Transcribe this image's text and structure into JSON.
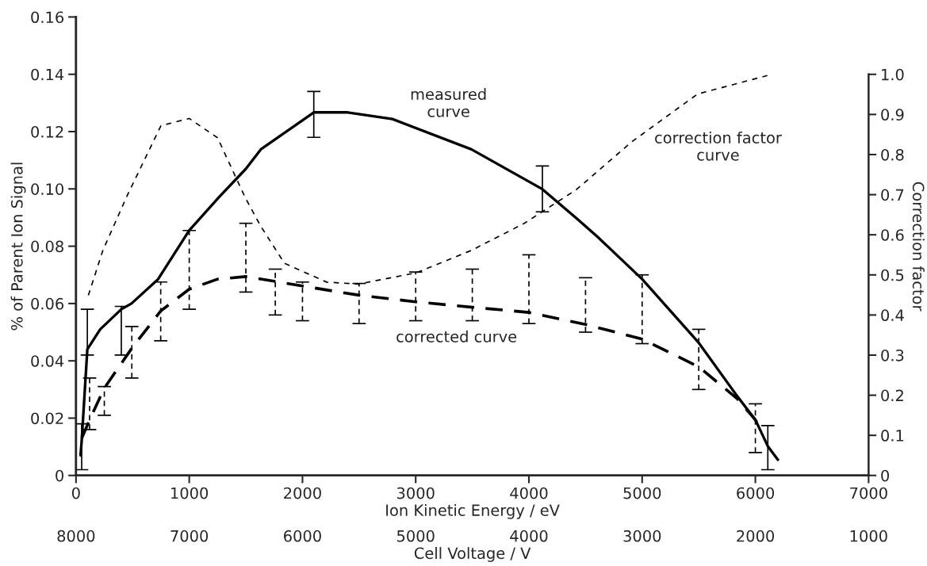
{
  "chart_data": {
    "type": "line",
    "xlabel": "Ion Kinetic Energy / eV",
    "ylabel": "% of Parent Ion Signal",
    "y2label": "Correction factor",
    "x2label": "Cell Voltage / V",
    "xlim": [
      0,
      7000
    ],
    "xticks": [
      0,
      1000,
      2000,
      3000,
      4000,
      5000,
      6000,
      7000
    ],
    "x2lim": [
      8000,
      1000
    ],
    "x2ticks": [
      8000,
      7000,
      6000,
      5000,
      4000,
      3000,
      2000,
      1000
    ],
    "ylim": [
      0,
      0.16
    ],
    "yticks": [
      0,
      0.02,
      0.04,
      0.06,
      0.08,
      {
        "value": 0.1,
        "label": "0.10"
      },
      0.12,
      0.14,
      0.16
    ],
    "y2lim": [
      0,
      1.143
    ],
    "y2ticks": [
      0,
      0.1,
      0.2,
      0.3,
      0.4,
      0.5,
      0.6,
      0.7,
      0.8,
      0.9,
      {
        "value": 1.0,
        "label": "1.0"
      }
    ],
    "grid": false,
    "legend": false,
    "marker": "none",
    "annotations": [
      "measured\ncurve",
      "corrected curve",
      "correction factor\ncurve"
    ],
    "series": [
      {
        "color": "#000000",
        "line_style": "solid",
        "x": [
          40,
          50,
          100,
          214,
          400,
          490,
          725,
          1000,
          1260,
          1500,
          1632,
          2100,
          2400,
          2794,
          3492,
          4119,
          4421,
          4608,
          5000,
          5500,
          5839,
          6000,
          6110,
          6199
        ],
        "values": [
          0.007,
          0.012,
          0.044,
          0.051,
          0.058,
          0.06,
          0.0685,
          0.0855,
          0.097,
          0.107,
          0.1138,
          0.1267,
          0.1267,
          0.1244,
          0.1138,
          0.0999,
          0.0897,
          0.0832,
          0.0685,
          0.0463,
          0.0277,
          0.0194,
          0.0102,
          0.0055
        ],
        "errors": [
          null,
          [
            0.002,
            0.018
          ],
          [
            0.042,
            0.058
          ],
          null,
          [
            0.042,
            0.059
          ],
          null,
          null,
          null,
          null,
          null,
          null,
          [
            0.118,
            0.134
          ],
          null,
          null,
          null,
          [
            0.092,
            0.108
          ],
          null,
          null,
          null,
          null,
          null,
          null,
          [
            0.002,
            0.0174
          ],
          null
        ]
      },
      {
        "color": "#000000",
        "line_style": "dashed",
        "x": [
          51,
          120,
          250,
          493,
          748,
          1000,
          1250,
          1500,
          1760,
          2000,
          2500,
          3000,
          3500,
          4000,
          4500,
          5000,
          5500,
          5839,
          6000,
          6020
        ],
        "values": [
          0.013,
          0.0194,
          0.0305,
          0.0444,
          0.0574,
          0.065,
          0.0685,
          0.0694,
          0.0677,
          0.0661,
          0.0629,
          0.0606,
          0.0587,
          0.0569,
          0.0527,
          0.0476,
          0.0379,
          0.0268,
          0.0194,
          0.018
        ],
        "errors": [
          null,
          [
            0.016,
            0.034
          ],
          [
            0.021,
            0.031
          ],
          [
            0.034,
            0.052
          ],
          [
            0.047,
            0.0675
          ],
          [
            0.058,
            0.0855
          ],
          null,
          [
            0.064,
            0.088
          ],
          [
            0.056,
            0.072
          ],
          [
            0.054,
            0.0675
          ],
          [
            0.053,
            0.067
          ],
          [
            0.054,
            0.071
          ],
          [
            0.054,
            0.072
          ],
          [
            0.053,
            0.077
          ],
          [
            0.05,
            0.069
          ],
          [
            0.046,
            0.07
          ],
          [
            0.03,
            0.051
          ],
          null,
          [
            0.008,
            0.025
          ],
          null
        ]
      },
      {
        "color": "#000000",
        "line_style": "dotted",
        "axis": "y2",
        "x": [
          109,
          237,
          446,
          750,
          1000,
          1250,
          1492,
          1632,
          1841,
          2213,
          2492,
          3003,
          3491,
          3956,
          4421,
          4909,
          5490,
          6106
        ],
        "values": [
          0.449,
          0.561,
          0.694,
          0.872,
          0.89,
          0.842,
          0.694,
          0.621,
          0.529,
          0.482,
          0.477,
          0.505,
          0.561,
          0.628,
          0.713,
          0.832,
          0.951,
          0.997
        ]
      }
    ]
  }
}
